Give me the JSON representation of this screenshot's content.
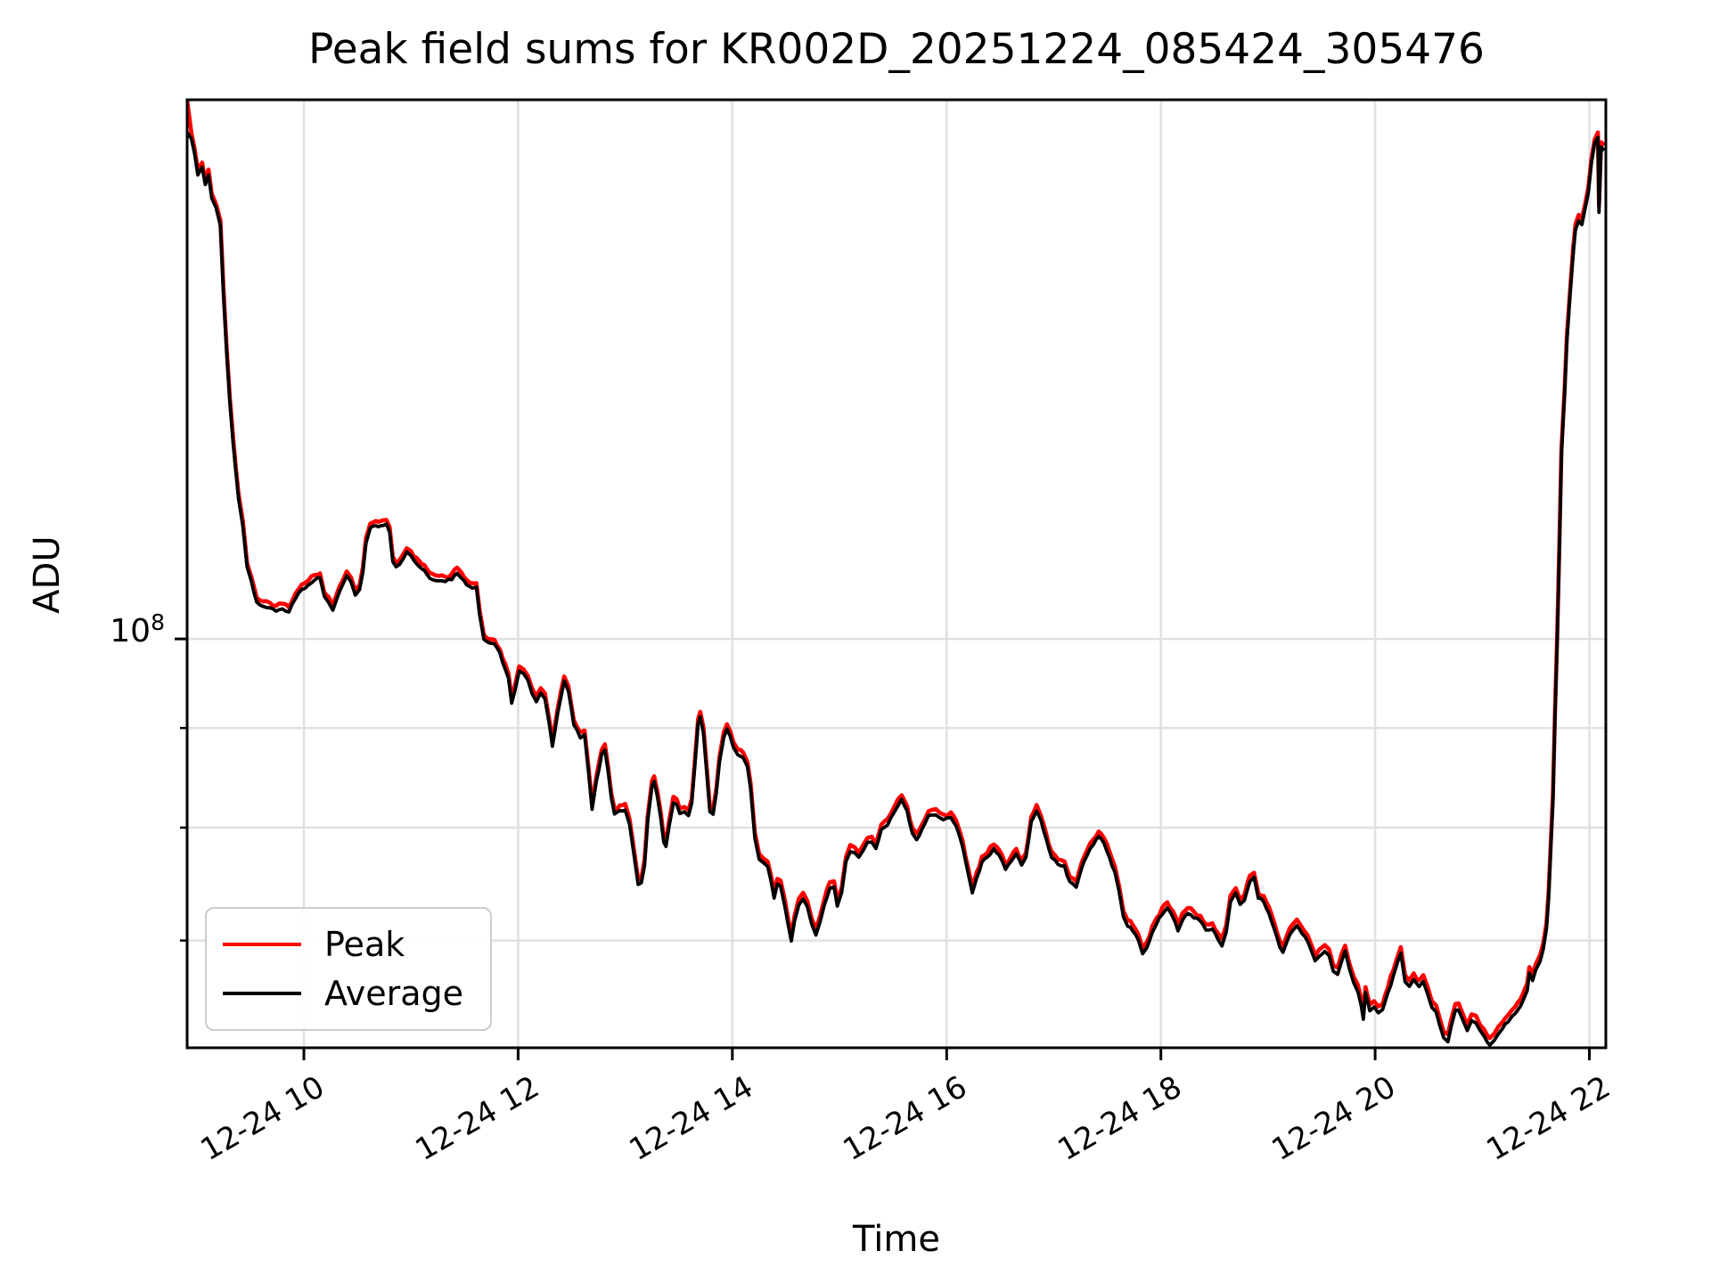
{
  "figure": {
    "title": "Peak field sums for KR002D_20251224_085424_305476",
    "xlabel": "Time",
    "ylabel": "ADU",
    "background": "#ffffff",
    "colors": {
      "peak_line": "#ff0000",
      "average_line": "#000000",
      "grid": "#e0e0e0",
      "spine": "#000000",
      "legend_border": "#cccccc"
    }
  },
  "legend": {
    "items": [
      {
        "label": "Peak",
        "color": "#ff0000"
      },
      {
        "label": "Average",
        "color": "#000000"
      }
    ]
  },
  "chart_data": {
    "type": "line",
    "title": "Peak field sums for KR002D_20251224_085424_305476",
    "xlabel": "Time",
    "ylabel": "ADU",
    "grid": true,
    "legend_position": "lower left",
    "y_scale": "log",
    "y_major_tick": {
      "base": "10",
      "exponent": "8",
      "value": 100000000
    },
    "y_minor_tick_values": [
      90000000,
      80000000,
      70000000
    ],
    "y_view_top": 189200000,
    "y_view_bottom": 61660000,
    "x_view_start_hour": 8.91,
    "x_view_end_hour": 22.154,
    "x_tick_date": "12-24",
    "x_ticks": [
      {
        "hour": 10,
        "label": "12-24 10"
      },
      {
        "hour": 12,
        "label": "12-24 12"
      },
      {
        "hour": 14,
        "label": "12-24 14"
      },
      {
        "hour": 16,
        "label": "12-24 16"
      },
      {
        "hour": 18,
        "label": "12-24 18"
      },
      {
        "hour": 20,
        "label": "12-24 20"
      },
      {
        "hour": 22,
        "label": "12-24 22"
      }
    ],
    "value_unit_multiplier": 1000000,
    "x_hours": [
      8.91,
      8.95,
      8.98,
      9.01,
      9.05,
      9.08,
      9.11,
      9.14,
      9.18,
      9.22,
      9.25,
      9.28,
      9.31,
      9.34,
      9.39,
      9.43,
      9.47,
      9.51,
      9.56,
      9.62,
      9.68,
      9.74,
      9.8,
      9.86,
      9.92,
      9.98,
      10.04,
      10.1,
      10.15,
      10.19,
      10.23,
      10.27,
      10.31,
      10.36,
      10.4,
      10.44,
      10.48,
      10.52,
      10.55,
      10.58,
      10.62,
      10.67,
      10.72,
      10.77,
      10.8,
      10.83,
      10.86,
      10.89,
      10.93,
      10.96,
      11.0,
      11.05,
      11.1,
      11.15,
      11.2,
      11.26,
      11.32,
      11.38,
      11.43,
      11.47,
      11.52,
      11.57,
      11.61,
      11.64,
      11.68,
      11.73,
      11.78,
      11.83,
      11.88,
      11.91,
      11.94,
      11.97,
      12.01,
      12.05,
      12.09,
      12.13,
      12.17,
      12.21,
      12.25,
      12.29,
      12.32,
      12.37,
      12.43,
      12.47,
      12.52,
      12.58,
      12.62,
      12.66,
      12.69,
      12.73,
      12.78,
      12.81,
      12.84,
      12.87,
      12.9,
      12.95,
      13.0,
      13.04,
      13.08,
      13.12,
      13.15,
      13.18,
      13.21,
      13.25,
      13.27,
      13.3,
      13.33,
      13.36,
      13.38,
      13.41,
      13.45,
      13.48,
      13.51,
      13.55,
      13.59,
      13.62,
      13.65,
      13.68,
      13.7,
      13.73,
      13.76,
      13.79,
      13.82,
      13.85,
      13.88,
      13.92,
      13.95,
      13.98,
      14.01,
      14.05,
      14.1,
      14.14,
      14.17,
      14.21,
      14.25,
      14.29,
      14.33,
      14.36,
      14.39,
      14.42,
      14.45,
      14.49,
      14.52,
      14.55,
      14.58,
      14.62,
      14.66,
      14.7,
      14.74,
      14.78,
      14.82,
      14.86,
      14.91,
      14.95,
      14.98,
      15.02,
      15.06,
      15.1,
      15.14,
      15.18,
      15.22,
      15.26,
      15.3,
      15.34,
      15.39,
      15.45,
      15.51,
      15.58,
      15.63,
      15.68,
      15.72,
      15.77,
      15.83,
      15.9,
      15.97,
      16.04,
      16.09,
      16.15,
      16.2,
      16.24,
      16.28,
      16.33,
      16.38,
      16.44,
      16.49,
      16.55,
      16.6,
      16.65,
      16.7,
      16.74,
      16.79,
      16.84,
      16.88,
      16.93,
      16.98,
      17.04,
      17.1,
      17.15,
      17.21,
      17.26,
      17.31,
      17.37,
      17.42,
      17.47,
      17.52,
      17.57,
      17.61,
      17.65,
      17.69,
      17.74,
      17.79,
      17.83,
      17.87,
      17.92,
      17.96,
      18.01,
      18.06,
      18.11,
      18.16,
      18.2,
      18.25,
      18.31,
      18.37,
      18.42,
      18.48,
      18.53,
      18.57,
      18.61,
      18.65,
      18.7,
      18.74,
      18.78,
      18.83,
      18.87,
      18.91,
      18.96,
      19.01,
      19.06,
      19.11,
      19.14,
      19.18,
      19.23,
      19.27,
      19.32,
      19.37,
      19.42,
      19.44,
      19.48,
      19.53,
      19.57,
      19.61,
      19.65,
      19.69,
      19.72,
      19.76,
      19.8,
      19.84,
      19.87,
      19.89,
      19.91,
      19.95,
      19.99,
      20.03,
      20.07,
      20.12,
      20.17,
      20.21,
      20.24,
      20.28,
      20.32,
      20.36,
      20.41,
      20.45,
      20.49,
      20.53,
      20.57,
      20.6,
      20.64,
      20.68,
      20.71,
      20.75,
      20.78,
      20.82,
      20.86,
      20.9,
      20.94,
      20.98,
      21.02,
      21.07,
      21.11,
      21.15,
      21.19,
      21.24,
      21.28,
      21.33,
      21.38,
      21.42,
      21.44,
      21.47,
      21.5,
      21.54,
      21.57,
      21.6,
      21.62,
      21.64,
      21.66,
      21.68,
      21.7,
      21.72,
      21.74,
      21.77,
      21.79,
      21.82,
      21.85,
      21.87,
      21.9,
      21.93,
      21.96,
      21.99,
      22.02,
      22.05,
      22.08,
      22.09,
      22.11,
      22.14
    ],
    "series": [
      {
        "name": "Peak",
        "color": "#ff0000",
        "values": [
          189.2,
          181.8,
          178.5,
          174.0,
          175.8,
          172.2,
          174.2,
          169.4,
          167.4,
          163.9,
          150.8,
          140.8,
          132.7,
          126.7,
          118.6,
          114.9,
          109.4,
          107.7,
          105.0,
          104.6,
          104.4,
          103.9,
          104.2,
          103.9,
          105.4,
          106.6,
          107.2,
          107.8,
          108.1,
          105.7,
          105.0,
          104.1,
          105.6,
          107.1,
          108.4,
          107.6,
          106.0,
          106.6,
          108.8,
          112.6,
          114.6,
          114.9,
          115.0,
          115.2,
          114.1,
          110.2,
          109.5,
          109.8,
          110.6,
          111.4,
          111.0,
          110.0,
          109.2,
          108.5,
          107.9,
          107.7,
          107.6,
          107.9,
          108.7,
          108.1,
          107.2,
          106.8,
          106.9,
          103.5,
          100.4,
          100.0,
          99.9,
          98.8,
          97.0,
          96.0,
          93.2,
          94.6,
          96.8,
          96.5,
          95.7,
          94.3,
          93.4,
          94.3,
          93.7,
          91.0,
          88.6,
          92.2,
          95.6,
          94.5,
          90.8,
          89.5,
          89.8,
          85.6,
          82.2,
          85.0,
          87.7,
          88.2,
          86.0,
          83.3,
          81.8,
          82.1,
          82.2,
          80.8,
          78.0,
          75.2,
          75.4,
          77.0,
          81.2,
          84.5,
          85.0,
          83.5,
          81.5,
          79.1,
          78.7,
          80.7,
          82.9,
          82.7,
          81.8,
          82.0,
          81.7,
          82.8,
          86.7,
          91.0,
          91.7,
          90.0,
          86.0,
          82.0,
          81.8,
          83.8,
          87.0,
          89.5,
          90.4,
          89.6,
          88.5,
          87.7,
          87.4,
          86.5,
          84.3,
          79.5,
          77.6,
          77.2,
          76.9,
          75.6,
          74.1,
          75.3,
          75.1,
          73.4,
          71.8,
          70.5,
          72.1,
          73.5,
          74.0,
          73.3,
          71.9,
          71.0,
          72.1,
          73.6,
          75.0,
          75.1,
          73.4,
          74.6,
          77.3,
          78.3,
          78.2,
          77.7,
          78.3,
          79.1,
          79.2,
          78.5,
          80.3,
          80.8,
          82.0,
          83.2,
          82.1,
          80.0,
          79.4,
          80.3,
          81.6,
          81.7,
          81.2,
          81.4,
          80.6,
          78.7,
          76.3,
          74.6,
          75.8,
          77.3,
          77.7,
          78.5,
          77.9,
          76.6,
          77.3,
          78.0,
          77.0,
          77.7,
          81.0,
          82.1,
          81.2,
          79.4,
          77.7,
          77.1,
          76.9,
          75.5,
          75.1,
          76.7,
          77.9,
          78.9,
          79.7,
          79.0,
          77.7,
          76.4,
          74.7,
          72.5,
          71.7,
          71.3,
          70.5,
          69.4,
          69.9,
          71.2,
          71.9,
          72.7,
          73.3,
          72.5,
          71.3,
          72.2,
          72.8,
          72.4,
          72.1,
          71.4,
          71.5,
          70.6,
          70.1,
          71.2,
          73.8,
          74.5,
          73.5,
          73.9,
          75.5,
          75.9,
          74.1,
          73.8,
          72.8,
          71.4,
          69.9,
          69.5,
          70.5,
          71.3,
          71.7,
          71.1,
          70.4,
          69.3,
          68.8,
          69.2,
          69.6,
          69.3,
          68.0,
          67.8,
          68.9,
          69.6,
          68.2,
          67.1,
          66.4,
          65.3,
          64.3,
          66.3,
          64.9,
          65.2,
          64.8,
          65.0,
          66.3,
          67.6,
          68.7,
          69.5,
          67.2,
          66.8,
          67.3,
          66.8,
          67.2,
          66.2,
          65.2,
          64.8,
          63.9,
          62.9,
          62.6,
          63.7,
          65.0,
          65.0,
          64.2,
          63.4,
          64.2,
          64.0,
          63.4,
          63.0,
          62.4,
          62.7,
          63.2,
          63.6,
          64.1,
          64.5,
          65.0,
          65.7,
          66.5,
          67.8,
          67.3,
          68.1,
          68.8,
          69.8,
          71.5,
          74.2,
          78.6,
          83.1,
          92.0,
          100.4,
          111.5,
          125.3,
          134.7,
          142.9,
          151.2,
          159.0,
          163.2,
          165.0,
          164.3,
          167.3,
          170.5,
          176.7,
          180.7,
          182.0,
          166.8,
          180.1,
          179.3
        ]
      },
      {
        "name": "Average",
        "color": "#000000",
        "values": [
          182.0,
          180.8,
          177.5,
          173.0,
          174.8,
          171.2,
          173.2,
          168.5,
          166.5,
          163.0,
          150.0,
          140.0,
          132.0,
          126.0,
          118.0,
          114.3,
          108.8,
          107.1,
          104.4,
          104.0,
          103.8,
          103.3,
          103.6,
          103.3,
          104.8,
          106.0,
          106.6,
          107.2,
          107.5,
          105.1,
          104.4,
          103.5,
          105.0,
          106.5,
          107.8,
          107.0,
          105.4,
          106.0,
          108.2,
          112.0,
          114.0,
          114.3,
          114.4,
          114.6,
          113.5,
          109.6,
          108.9,
          109.2,
          110.0,
          110.8,
          110.4,
          109.4,
          108.6,
          107.9,
          107.3,
          107.1,
          107.0,
          107.3,
          108.1,
          107.5,
          106.6,
          106.2,
          106.3,
          102.9,
          99.9,
          99.5,
          99.4,
          98.3,
          96.5,
          95.5,
          92.7,
          94.1,
          96.3,
          96.0,
          95.2,
          93.8,
          92.9,
          93.8,
          93.2,
          90.5,
          88.1,
          91.7,
          95.1,
          94.0,
          90.3,
          89.0,
          89.3,
          85.1,
          81.7,
          84.5,
          87.2,
          87.7,
          85.5,
          82.8,
          81.3,
          81.6,
          81.7,
          80.3,
          77.5,
          74.8,
          75.0,
          76.5,
          80.7,
          84.0,
          84.5,
          83.0,
          81.0,
          78.6,
          78.2,
          80.2,
          82.4,
          82.2,
          81.3,
          81.5,
          81.2,
          82.3,
          86.2,
          90.5,
          91.2,
          89.5,
          85.5,
          81.5,
          81.3,
          83.3,
          86.5,
          89.0,
          89.9,
          89.1,
          88.0,
          87.2,
          86.9,
          86.0,
          83.8,
          79.0,
          77.1,
          76.7,
          76.4,
          75.1,
          73.6,
          74.8,
          74.6,
          72.9,
          71.3,
          70.0,
          71.6,
          73.0,
          73.5,
          72.8,
          71.4,
          70.5,
          71.6,
          73.1,
          74.5,
          74.6,
          72.9,
          74.1,
          76.8,
          77.8,
          77.7,
          77.2,
          77.8,
          78.6,
          78.7,
          78.0,
          79.8,
          80.3,
          81.5,
          82.7,
          81.6,
          79.5,
          78.9,
          79.8,
          81.1,
          81.2,
          80.7,
          80.9,
          80.1,
          78.2,
          75.8,
          74.1,
          75.3,
          76.8,
          77.2,
          78.0,
          77.4,
          76.1,
          76.8,
          77.5,
          76.5,
          77.2,
          80.5,
          81.6,
          80.7,
          78.9,
          77.2,
          76.6,
          76.4,
          75.0,
          74.6,
          76.2,
          77.4,
          78.4,
          79.2,
          78.5,
          77.2,
          75.9,
          74.2,
          72.0,
          71.2,
          70.8,
          70.0,
          68.9,
          69.4,
          70.7,
          71.4,
          72.2,
          72.8,
          72.0,
          70.8,
          71.7,
          72.3,
          71.9,
          71.6,
          70.9,
          71.0,
          70.1,
          69.6,
          70.7,
          73.3,
          74.0,
          73.0,
          73.4,
          75.0,
          75.4,
          73.6,
          73.3,
          72.3,
          70.9,
          69.4,
          69.0,
          70.0,
          70.8,
          71.2,
          70.6,
          69.9,
          68.8,
          68.3,
          68.7,
          69.1,
          68.8,
          67.5,
          67.3,
          68.4,
          69.1,
          67.7,
          66.6,
          65.9,
          64.8,
          63.8,
          65.8,
          64.4,
          64.7,
          64.3,
          64.5,
          65.8,
          67.1,
          68.2,
          69.0,
          66.7,
          66.3,
          66.8,
          66.3,
          66.7,
          65.7,
          64.7,
          64.3,
          63.4,
          62.4,
          62.1,
          63.2,
          64.5,
          64.5,
          63.7,
          62.9,
          63.7,
          63.5,
          62.9,
          62.5,
          61.9,
          62.2,
          62.7,
          63.1,
          63.6,
          64.0,
          64.5,
          65.2,
          66.0,
          67.3,
          66.8,
          67.6,
          68.3,
          69.3,
          71.0,
          73.6,
          78.0,
          82.5,
          91.3,
          99.7,
          110.8,
          124.5,
          133.9,
          142.0,
          150.3,
          158.0,
          162.2,
          164.0,
          163.3,
          166.3,
          169.5,
          175.7,
          179.7,
          180.9,
          165.7,
          179.0,
          178.2
        ]
      }
    ]
  }
}
